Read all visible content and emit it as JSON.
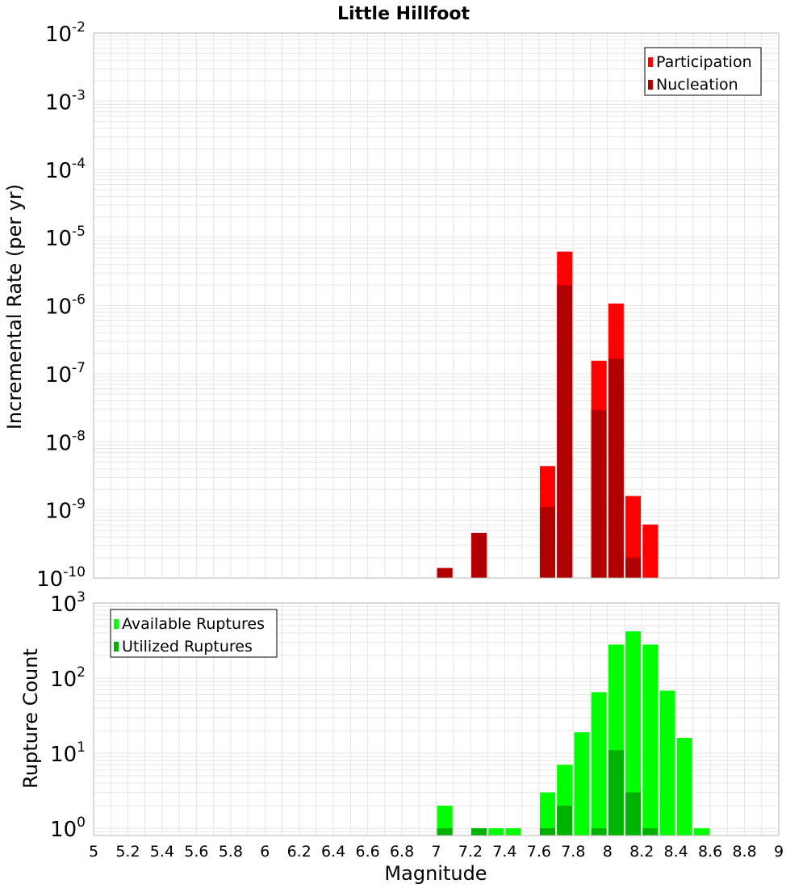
{
  "title": "Little Hillfoot",
  "xlabel": "Magnitude",
  "colors": {
    "participation": "#ff0000",
    "nucleation": "#b20000",
    "available": "#00ff00",
    "utilized": "#00b200",
    "grid": "#e6e6e6",
    "frame": "#b4b4b4"
  },
  "chart_data": [
    {
      "type": "bar",
      "title": "Little Hillfoot",
      "xlabel": "",
      "ylabel": "Incremental Rate (per yr)",
      "yscale": "log",
      "xlim": [
        5,
        9
      ],
      "ylim": [
        1e-10,
        0.01
      ],
      "grid": true,
      "legend_position": "top-right",
      "xticks": [
        "5",
        "5.2",
        "5.4",
        "5.6",
        "5.8",
        "6",
        "6.2",
        "6.4",
        "6.6",
        "6.8",
        "7",
        "7.2",
        "7.4",
        "7.6",
        "7.8",
        "8",
        "8.2",
        "8.4",
        "8.6",
        "8.8",
        "9"
      ],
      "yticks": [
        {
          "base": "10",
          "exp": "-2"
        },
        {
          "base": "10",
          "exp": "-3"
        },
        {
          "base": "10",
          "exp": "-4"
        },
        {
          "base": "10",
          "exp": "-5"
        },
        {
          "base": "10",
          "exp": "-6"
        },
        {
          "base": "10",
          "exp": "-7"
        },
        {
          "base": "10",
          "exp": "-8"
        },
        {
          "base": "10",
          "exp": "-9"
        },
        {
          "base": "10",
          "exp": "-10"
        }
      ],
      "x": [
        7.05,
        7.25,
        7.65,
        7.75,
        7.95,
        8.05,
        8.15,
        8.25
      ],
      "series": [
        {
          "name": "Participation",
          "values": [
            1.4e-10,
            4.6e-10,
            4.4e-09,
            6.2e-06,
            1.55e-07,
            1.07e-06,
            1.6e-09,
            6.1e-10
          ]
        },
        {
          "name": "Nucleation",
          "values": [
            1.4e-10,
            4.6e-10,
            1.1e-09,
            2e-06,
            2.9e-08,
            1.65e-07,
            2e-10,
            null
          ]
        }
      ]
    },
    {
      "type": "bar",
      "title": "",
      "xlabel": "Magnitude",
      "ylabel": "Rupture Count",
      "yscale": "log",
      "xlim": [
        5,
        9
      ],
      "ylim": [
        0.8,
        1000
      ],
      "grid": true,
      "legend_position": "top-left",
      "xticks": [
        "5",
        "5.2",
        "5.4",
        "5.6",
        "5.8",
        "6",
        "6.2",
        "6.4",
        "6.6",
        "6.8",
        "7",
        "7.2",
        "7.4",
        "7.6",
        "7.8",
        "8",
        "8.2",
        "8.4",
        "8.6",
        "8.8",
        "9"
      ],
      "yticks": [
        {
          "base": "10",
          "exp": "3"
        },
        {
          "base": "10",
          "exp": "2"
        },
        {
          "base": "10",
          "exp": "1"
        },
        {
          "base": "10",
          "exp": "0"
        }
      ],
      "x": [
        7.05,
        7.25,
        7.35,
        7.45,
        7.65,
        7.75,
        7.85,
        7.95,
        8.05,
        8.15,
        8.25,
        8.35,
        8.45,
        8.55
      ],
      "series": [
        {
          "name": "Available Ruptures",
          "values": [
            2,
            1,
            1,
            1,
            3,
            7,
            19,
            65,
            280,
            420,
            280,
            68,
            16,
            1
          ]
        },
        {
          "name": "Utilized Ruptures",
          "values": [
            1,
            1,
            null,
            null,
            1,
            2,
            null,
            1,
            11,
            3,
            1,
            null,
            null,
            null
          ]
        }
      ]
    }
  ]
}
